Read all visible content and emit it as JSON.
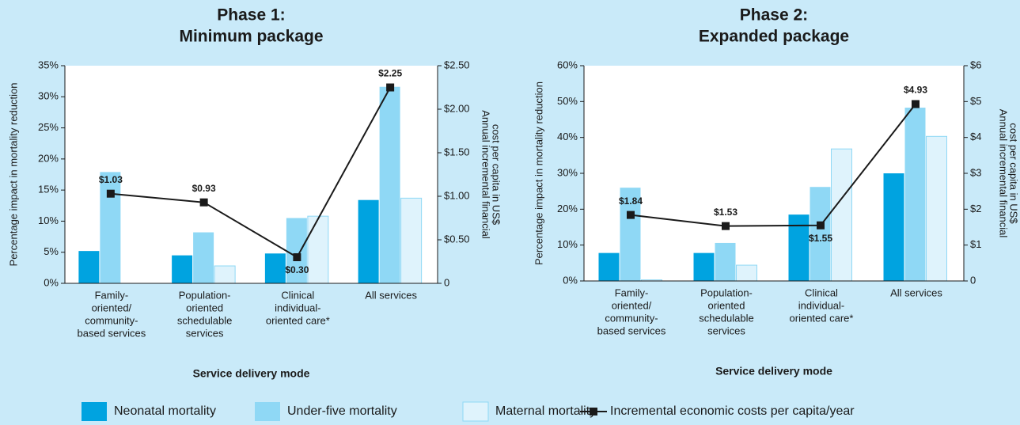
{
  "chart_data": [
    {
      "type": "bar",
      "title": [
        "Phase 1:",
        "Minimum package"
      ],
      "categories": [
        [
          "Family-",
          "oriented/",
          "community-",
          "based services"
        ],
        [
          "Population-",
          "oriented",
          "schedulable",
          "services"
        ],
        [
          "Clinical",
          "individual-",
          "oriented care*"
        ],
        [
          "All services"
        ]
      ],
      "x_label": "Service delivery mode",
      "y_label": "Percentage impact in mortality reduction",
      "y2_label": [
        "Annual incremental financial",
        "cost per capita in US$"
      ],
      "ylim": [
        0,
        35
      ],
      "yticks": [
        {
          "value": 0,
          "label": "0%"
        },
        {
          "value": 5,
          "label": "5%"
        },
        {
          "value": 10,
          "label": "10%"
        },
        {
          "value": 15,
          "label": "15%"
        },
        {
          "value": 20,
          "label": "20%"
        },
        {
          "value": 25,
          "label": "25%"
        },
        {
          "value": 30,
          "label": "30%"
        },
        {
          "value": 35,
          "label": "35%"
        }
      ],
      "y2lim": [
        0,
        2.5
      ],
      "y2ticks": [
        0,
        {
          "value": 0.5,
          "label": "$0.50"
        },
        {
          "value": 1,
          "label": "$1.00"
        },
        {
          "value": 1.5,
          "label": "$1.50"
        },
        {
          "value": 2,
          "label": "$2.00"
        },
        {
          "value": 2.5,
          "label": "$2.50"
        }
      ],
      "series": [
        {
          "name": "Neonatal mortality",
          "color": "#00a3e0",
          "values": [
            5.2,
            4.5,
            4.8,
            13.4
          ]
        },
        {
          "name": "Under-five mortality",
          "color": "#8fd8f5",
          "values": [
            17.9,
            8.2,
            10.5,
            31.6
          ]
        },
        {
          "name": "Maternal mortality",
          "color": "#dff3fc",
          "values": [
            null,
            2.8,
            10.8,
            13.7
          ]
        },
        {
          "name": "Incremental economic costs per capita/year",
          "color": "#1a1a1a",
          "type": "line",
          "axis": "y2",
          "values": [
            1.03,
            0.93,
            0.3,
            2.25
          ],
          "value_labels": [
            "$1.03",
            "$0.93",
            "$0.30",
            "$2.25"
          ]
        }
      ]
    },
    {
      "type": "bar",
      "title": [
        "Phase 2:",
        "Expanded package"
      ],
      "categories": [
        [
          "Family-",
          "oriented/",
          "community-",
          "based services"
        ],
        [
          "Population-",
          "oriented",
          "schedulable",
          "services"
        ],
        [
          "Clinical",
          "individual-",
          "oriented care*"
        ],
        [
          "All services"
        ]
      ],
      "x_label": "Service delivery mode",
      "y_label": "Percentage impact in mortality reduction",
      "y2_label": [
        "Annual incremental financial",
        "cost per capita in US$"
      ],
      "ylim": [
        0,
        60
      ],
      "yticks": [
        {
          "value": 0,
          "label": "0%"
        },
        {
          "value": 10,
          "label": "10%"
        },
        {
          "value": 20,
          "label": "20%"
        },
        {
          "value": 30,
          "label": "30%"
        },
        {
          "value": 40,
          "label": "40%"
        },
        {
          "value": 50,
          "label": "50%"
        },
        {
          "value": 60,
          "label": "60%"
        }
      ],
      "y2lim": [
        0,
        6
      ],
      "y2ticks": [
        0,
        {
          "value": 1,
          "label": "$1"
        },
        {
          "value": 2,
          "label": "$2"
        },
        {
          "value": 3,
          "label": "$3"
        },
        {
          "value": 4,
          "label": "$4"
        },
        {
          "value": 5,
          "label": "$5"
        },
        {
          "value": 6,
          "label": "$6"
        }
      ],
      "series": [
        {
          "color": "#00a3e0",
          "values": [
            7.8,
            7.8,
            18.5,
            30
          ]
        },
        {
          "color": "#8fd8f5",
          "values": [
            26,
            10.6,
            26.2,
            48.3
          ]
        },
        {
          "color": "#dff3fc",
          "values": [
            0.3,
            4.4,
            36.8,
            40.3
          ]
        },
        {
          "color": "#1a1a1a",
          "type": "line",
          "axis": "y2",
          "values": [
            1.84,
            1.53,
            1.55,
            4.93
          ],
          "value_labels": [
            "$1.84",
            "$1.53",
            "$1.55",
            "$4.93"
          ]
        }
      ]
    }
  ]
}
